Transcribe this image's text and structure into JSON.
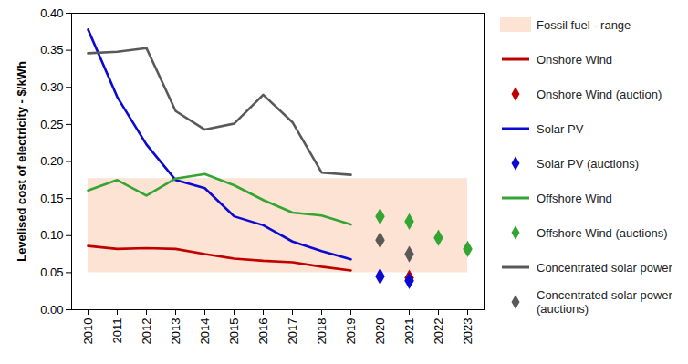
{
  "chart_data": {
    "type": "line",
    "y_label": "Levelised cost of electricity - $/kWh",
    "categories": [
      "2010",
      "2011",
      "2012",
      "2013",
      "2014",
      "2015",
      "2016",
      "2017",
      "2018",
      "2019",
      "2020",
      "2021",
      "2022",
      "2023"
    ],
    "ylim": [
      0,
      0.4
    ],
    "yticks": [
      {
        "value": 0,
        "label": "0.00"
      },
      {
        "value": 0.05,
        "label": "0.05"
      },
      {
        "value": 0.1,
        "label": "0.10"
      },
      {
        "value": 0.15,
        "label": "0.15"
      },
      {
        "value": 0.2,
        "label": "0.20"
      },
      {
        "value": 0.25,
        "label": "0.25"
      },
      {
        "value": 0.3,
        "label": "0.30"
      },
      {
        "value": 0.35,
        "label": "0.35"
      },
      {
        "value": 0.4,
        "label": "0.40"
      }
    ],
    "grid": false,
    "legend": "right",
    "series": [
      {
        "name": "Fossil fuel - range",
        "type": "area",
        "color": "#fde3d3",
        "range": [
          0.05,
          0.177
        ]
      },
      {
        "name": "Onshore Wind",
        "type": "line",
        "color": "#c00000",
        "values": [
          0.086,
          0.082,
          0.083,
          0.082,
          0.075,
          0.069,
          0.066,
          0.064,
          0.058,
          0.053,
          null,
          null,
          null,
          null
        ]
      },
      {
        "name": "Onshore Wind (auction)",
        "type": "scatter",
        "marker": "diamond",
        "color": "#c00000",
        "values": [
          null,
          null,
          null,
          null,
          null,
          null,
          null,
          null,
          null,
          null,
          null,
          0.043,
          null,
          null
        ]
      },
      {
        "name": "Solar PV",
        "type": "line",
        "color": "#0a0ad2",
        "values": [
          0.378,
          0.287,
          0.223,
          0.175,
          0.164,
          0.126,
          0.114,
          0.092,
          0.079,
          0.068,
          null,
          null,
          null,
          null
        ]
      },
      {
        "name": "Solar PV (auctions)",
        "type": "scatter",
        "marker": "diamond",
        "color": "#0a0ad2",
        "values": [
          null,
          null,
          null,
          null,
          null,
          null,
          null,
          null,
          null,
          null,
          0.045,
          0.039,
          null,
          null
        ]
      },
      {
        "name": "Offshore Wind",
        "type": "line",
        "color": "#33a532",
        "values": [
          0.161,
          0.175,
          0.154,
          0.177,
          0.183,
          0.168,
          0.148,
          0.131,
          0.127,
          0.115,
          null,
          null,
          null,
          null
        ]
      },
      {
        "name": "Offshore Wind (auctions)",
        "type": "scatter",
        "marker": "diamond",
        "color": "#33a532",
        "values": [
          null,
          null,
          null,
          null,
          null,
          null,
          null,
          null,
          null,
          null,
          0.126,
          0.119,
          0.097,
          0.082
        ]
      },
      {
        "name": "Concentrated solar power",
        "type": "line",
        "color": "#595959",
        "values": [
          0.346,
          0.348,
          0.353,
          0.268,
          0.243,
          0.251,
          0.29,
          0.253,
          0.185,
          0.182,
          null,
          null,
          null,
          null
        ]
      },
      {
        "name": "Concentrated solar power (auctions)",
        "type": "scatter",
        "marker": "diamond",
        "color": "#595959",
        "values": [
          null,
          null,
          null,
          null,
          null,
          null,
          null,
          null,
          null,
          null,
          0.094,
          0.075,
          null,
          null
        ]
      }
    ]
  }
}
